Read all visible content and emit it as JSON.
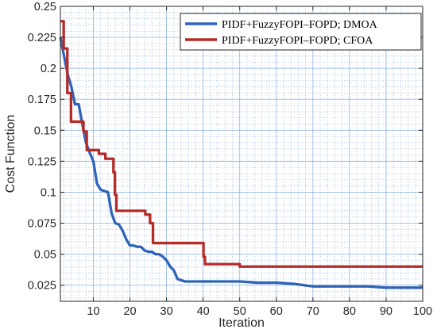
{
  "chart_data": {
    "type": "line",
    "title": "",
    "xlabel": "Iteration",
    "ylabel": "Cost Function",
    "xlim": [
      1,
      100
    ],
    "ylim": [
      0.012,
      0.25
    ],
    "xticks": [
      10,
      20,
      30,
      40,
      50,
      60,
      70,
      80,
      90,
      100
    ],
    "yticks": [
      0.025,
      0.05,
      0.075,
      0.1,
      0.125,
      0.15,
      0.175,
      0.2,
      0.225,
      0.25
    ],
    "ytick_labels": [
      "0.025",
      "0.05",
      "0.075",
      "0.1",
      "0.125",
      "0.15",
      "0.175",
      "0.2",
      "0.225",
      "0.25"
    ],
    "grid": true,
    "minor_grid": true,
    "legend_position": "top-right",
    "series": [
      {
        "name": "PIDF+FuzzyFOPI–FOPD; DMOA",
        "color": "#2e63b8",
        "x": [
          1,
          2,
          3,
          4,
          5,
          6,
          7,
          8,
          9,
          10,
          11,
          12,
          13,
          14,
          15,
          16,
          17,
          18,
          19,
          20,
          21,
          22,
          23,
          24,
          25,
          26,
          27,
          28,
          29,
          30,
          31,
          32,
          33,
          34,
          35,
          40,
          45,
          50,
          55,
          60,
          65,
          70,
          75,
          80,
          85,
          90,
          95,
          100
        ],
        "y": [
          0.225,
          0.21,
          0.195,
          0.185,
          0.171,
          0.171,
          0.155,
          0.14,
          0.132,
          0.125,
          0.107,
          0.102,
          0.101,
          0.1,
          0.083,
          0.075,
          0.074,
          0.069,
          0.062,
          0.057,
          0.057,
          0.056,
          0.056,
          0.053,
          0.052,
          0.052,
          0.05,
          0.05,
          0.048,
          0.045,
          0.04,
          0.037,
          0.03,
          0.029,
          0.028,
          0.028,
          0.028,
          0.028,
          0.027,
          0.027,
          0.026,
          0.024,
          0.024,
          0.024,
          0.024,
          0.023,
          0.023,
          0.023
        ]
      },
      {
        "name": "PIDF+FuzzyFOPI–FOPD; CFOA",
        "color": "#b52b27",
        "x": [
          1,
          1.9,
          1.9,
          2.9,
          2.9,
          3.9,
          3.9,
          7.3,
          7.3,
          8.2,
          8.2,
          11.5,
          11.5,
          13.3,
          13.3,
          15.5,
          15.5,
          15.9,
          15.9,
          16.3,
          16.3,
          24.2,
          24.2,
          25.5,
          25.5,
          26.3,
          26.3,
          40.1,
          40.1,
          40.5,
          40.5,
          50,
          50,
          100
        ],
        "y": [
          0.238,
          0.238,
          0.216,
          0.216,
          0.18,
          0.18,
          0.157,
          0.157,
          0.149,
          0.149,
          0.134,
          0.134,
          0.131,
          0.131,
          0.127,
          0.127,
          0.116,
          0.116,
          0.098,
          0.098,
          0.085,
          0.085,
          0.082,
          0.082,
          0.075,
          0.075,
          0.059,
          0.059,
          0.048,
          0.048,
          0.042,
          0.042,
          0.04,
          0.04
        ]
      }
    ]
  }
}
